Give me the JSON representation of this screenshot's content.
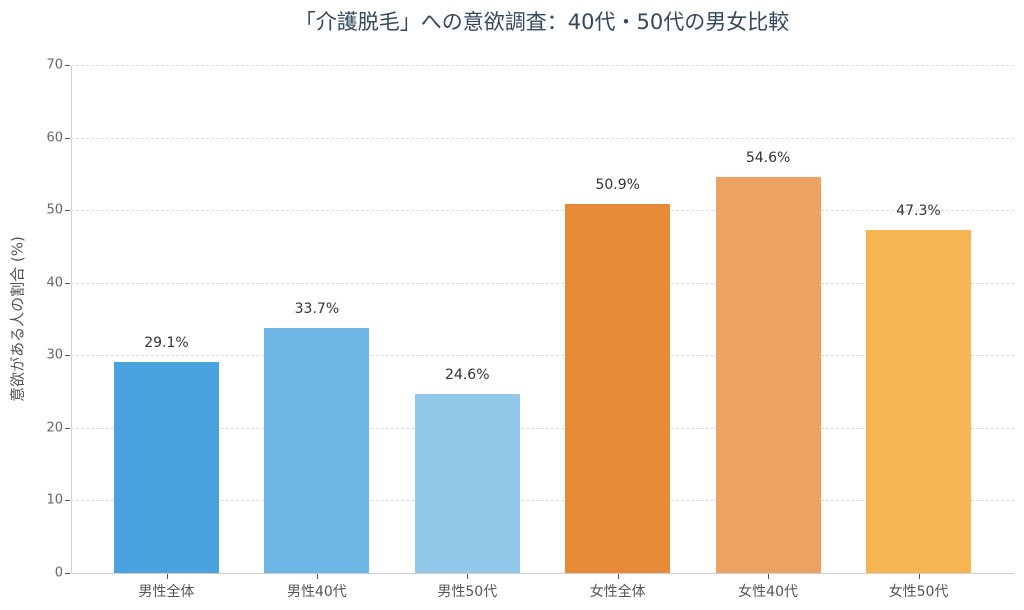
{
  "chart_data": {
    "type": "bar",
    "title": "「介護脱毛」への意欲調査：40代・50代の男女比較",
    "xlabel": "",
    "ylabel": "意欲がある人の割合 (%)",
    "ylim": [
      0,
      70
    ],
    "yticks": [
      0,
      10,
      20,
      30,
      40,
      50,
      60,
      70
    ],
    "grid": true,
    "legend": null,
    "categories": [
      "男性全体",
      "男性40代",
      "男性50代",
      "女性全体",
      "女性40代",
      "女性50代"
    ],
    "values": [
      29.1,
      33.7,
      24.6,
      50.9,
      54.6,
      47.3
    ],
    "value_labels": [
      "29.1%",
      "33.7%",
      "24.6%",
      "50.9%",
      "54.6%",
      "47.3%"
    ],
    "colors": [
      "#4aa3df",
      "#6db5e5",
      "#93c8eb",
      "#e68a37",
      "#eca260",
      "#f6b553"
    ]
  }
}
